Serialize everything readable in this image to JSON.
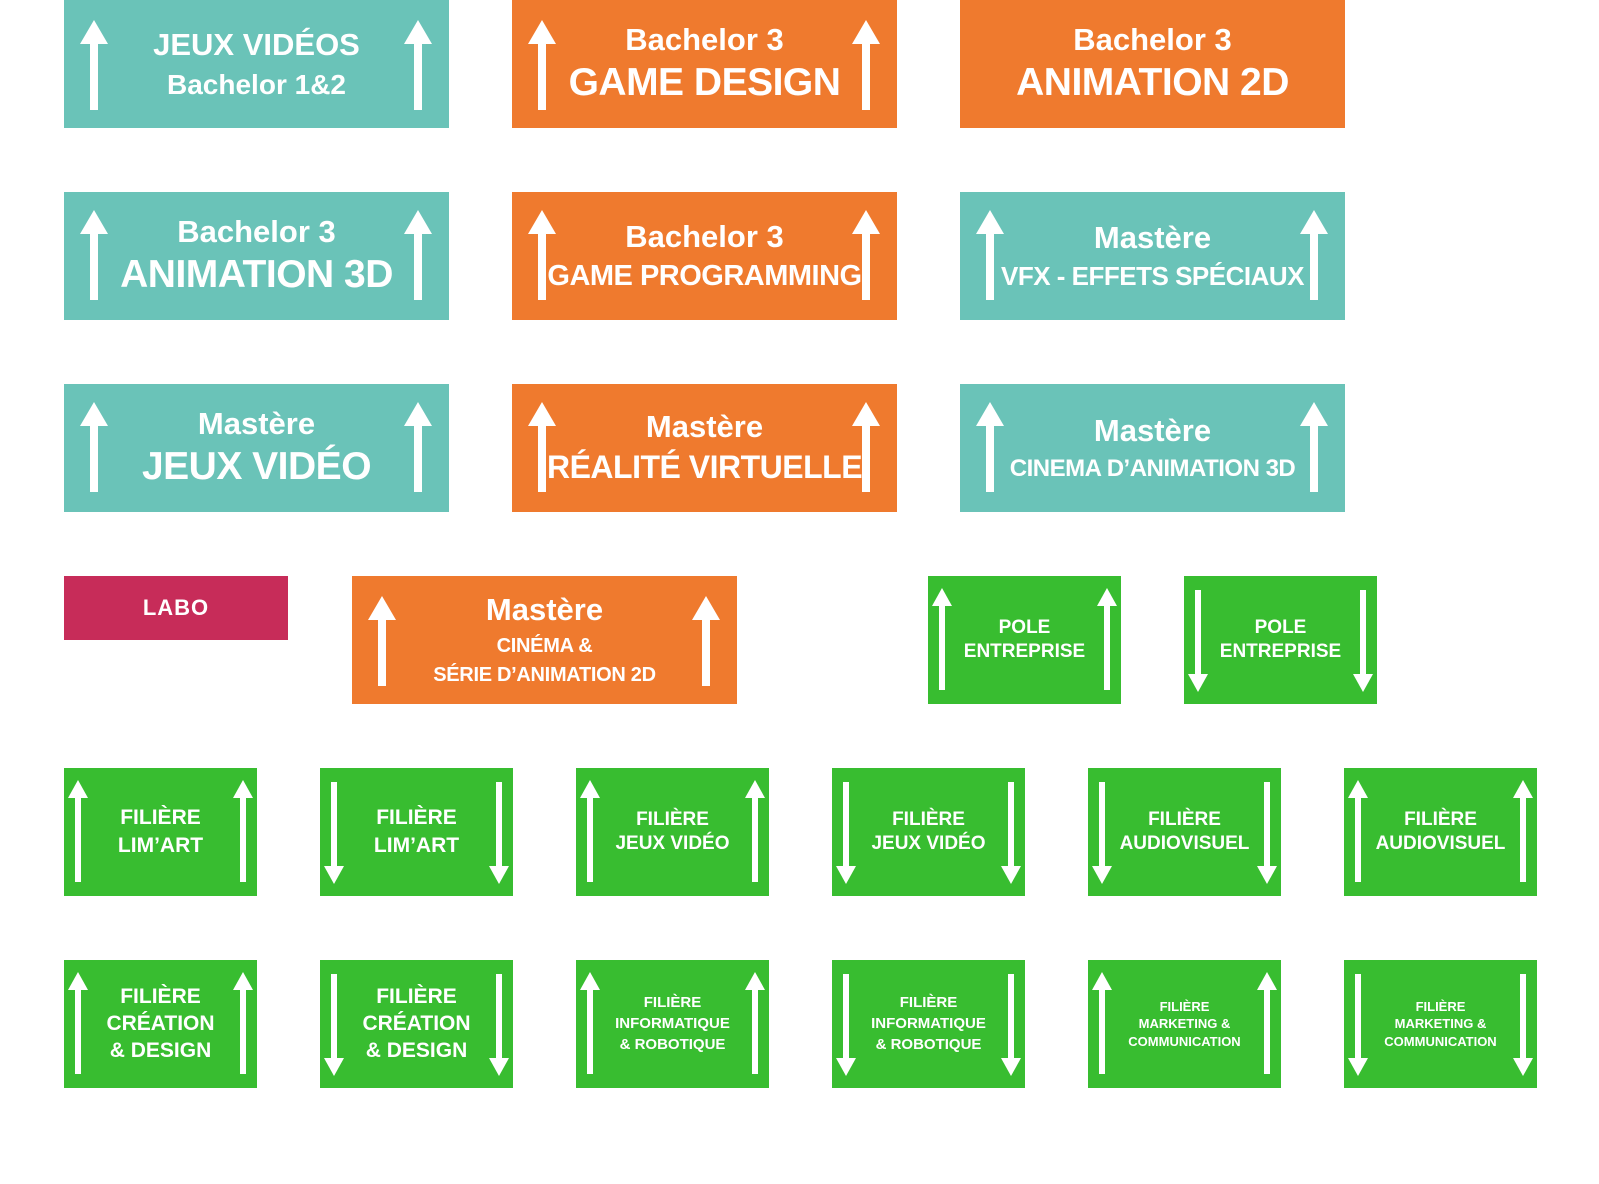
{
  "colors": {
    "teal": "#6ac3b8",
    "orange": "#ef7a2e",
    "green": "#38bd30",
    "magenta": "#c72c59",
    "text": "#ffffff"
  },
  "signs": [
    {
      "id": "jeux-videos-bachelor-1-2",
      "color": "teal",
      "lines": [
        "JEUX VIDÉOS",
        "Bachelor 1&2"
      ],
      "arrows": "up-both"
    },
    {
      "id": "bachelor-3-game-design",
      "color": "orange",
      "lines": [
        "Bachelor 3",
        "GAME DESIGN"
      ],
      "arrows": "up-both"
    },
    {
      "id": "bachelor-3-animation-2d",
      "color": "orange",
      "lines": [
        "Bachelor 3",
        "ANIMATION 2D"
      ],
      "arrows": "none"
    },
    {
      "id": "bachelor-3-animation-3d",
      "color": "teal",
      "lines": [
        "Bachelor 3",
        "ANIMATION 3D"
      ],
      "arrows": "up-both"
    },
    {
      "id": "bachelor-3-game-programming",
      "color": "orange",
      "lines": [
        "Bachelor 3",
        "GAME PROGRAMMING"
      ],
      "arrows": "up-both"
    },
    {
      "id": "mastere-vfx",
      "color": "teal",
      "lines": [
        "Mastère",
        "VFX - EFFETS SPÉCIAUX"
      ],
      "arrows": "up-both"
    },
    {
      "id": "mastere-jeux-video",
      "color": "teal",
      "lines": [
        "Mastère",
        "JEUX VIDÉO"
      ],
      "arrows": "up-both"
    },
    {
      "id": "mastere-realite-virtuelle",
      "color": "orange",
      "lines": [
        "Mastère",
        "RÉALITÉ VIRTUELLE"
      ],
      "arrows": "up-both"
    },
    {
      "id": "mastere-cinema-animation-3d",
      "color": "teal",
      "lines": [
        "Mastère",
        "CINEMA D’ANIMATION 3D"
      ],
      "arrows": "up-both"
    },
    {
      "id": "labo",
      "color": "magenta",
      "lines": [
        "LABO"
      ],
      "arrows": "none"
    },
    {
      "id": "mastere-cinema-serie-animation-2d",
      "color": "orange",
      "lines": [
        "Mastère",
        "CINÉMA &",
        "SÉRIE D’ANIMATION 2D"
      ],
      "arrows": "up-both"
    },
    {
      "id": "pole-entreprise-up",
      "color": "green",
      "lines": [
        "POLE",
        "ENTREPRISE"
      ],
      "arrows": "up-both"
    },
    {
      "id": "pole-entreprise-down",
      "color": "green",
      "lines": [
        "POLE",
        "ENTREPRISE"
      ],
      "arrows": "down-both"
    },
    {
      "id": "filiere-limart-up",
      "color": "green",
      "lines": [
        "FILIÈRE",
        "LIM’ART"
      ],
      "arrows": "up-both"
    },
    {
      "id": "filiere-limart-down",
      "color": "green",
      "lines": [
        "FILIÈRE",
        "LIM’ART"
      ],
      "arrows": "down-both"
    },
    {
      "id": "filiere-jeux-video-up",
      "color": "green",
      "lines": [
        "FILIÈRE",
        "JEUX VIDÉO"
      ],
      "arrows": "up-both"
    },
    {
      "id": "filiere-jeux-video-down",
      "color": "green",
      "lines": [
        "FILIÈRE",
        "JEUX VIDÉO"
      ],
      "arrows": "down-both"
    },
    {
      "id": "filiere-audiovisuel-down",
      "color": "green",
      "lines": [
        "FILIÈRE",
        "AUDIOVISUEL"
      ],
      "arrows": "down-both"
    },
    {
      "id": "filiere-audiovisuel-up",
      "color": "green",
      "lines": [
        "FILIÈRE",
        "AUDIOVISUEL"
      ],
      "arrows": "up-both"
    },
    {
      "id": "filiere-creation-design-up",
      "color": "green",
      "lines": [
        "FILIÈRE",
        "CRÉATION",
        "& DESIGN"
      ],
      "arrows": "up-both"
    },
    {
      "id": "filiere-creation-design-down",
      "color": "green",
      "lines": [
        "FILIÈRE",
        "CRÉATION",
        "& DESIGN"
      ],
      "arrows": "down-both"
    },
    {
      "id": "filiere-informatique-robotique-up",
      "color": "green",
      "lines": [
        "FILIÈRE",
        "INFORMATIQUE",
        "& ROBOTIQUE"
      ],
      "arrows": "up-both"
    },
    {
      "id": "filiere-informatique-robotique-down",
      "color": "green",
      "lines": [
        "FILIÈRE",
        "INFORMATIQUE",
        "& ROBOTIQUE"
      ],
      "arrows": "down-both"
    },
    {
      "id": "filiere-marketing-communication-up",
      "color": "green",
      "lines": [
        "FILIÈRE",
        "MARKETING &",
        "COMMUNICATION"
      ],
      "arrows": "up-both"
    },
    {
      "id": "filiere-marketing-communication-down",
      "color": "green",
      "lines": [
        "FILIÈRE",
        "MARKETING &",
        "COMMUNICATION"
      ],
      "arrows": "down-both"
    }
  ]
}
